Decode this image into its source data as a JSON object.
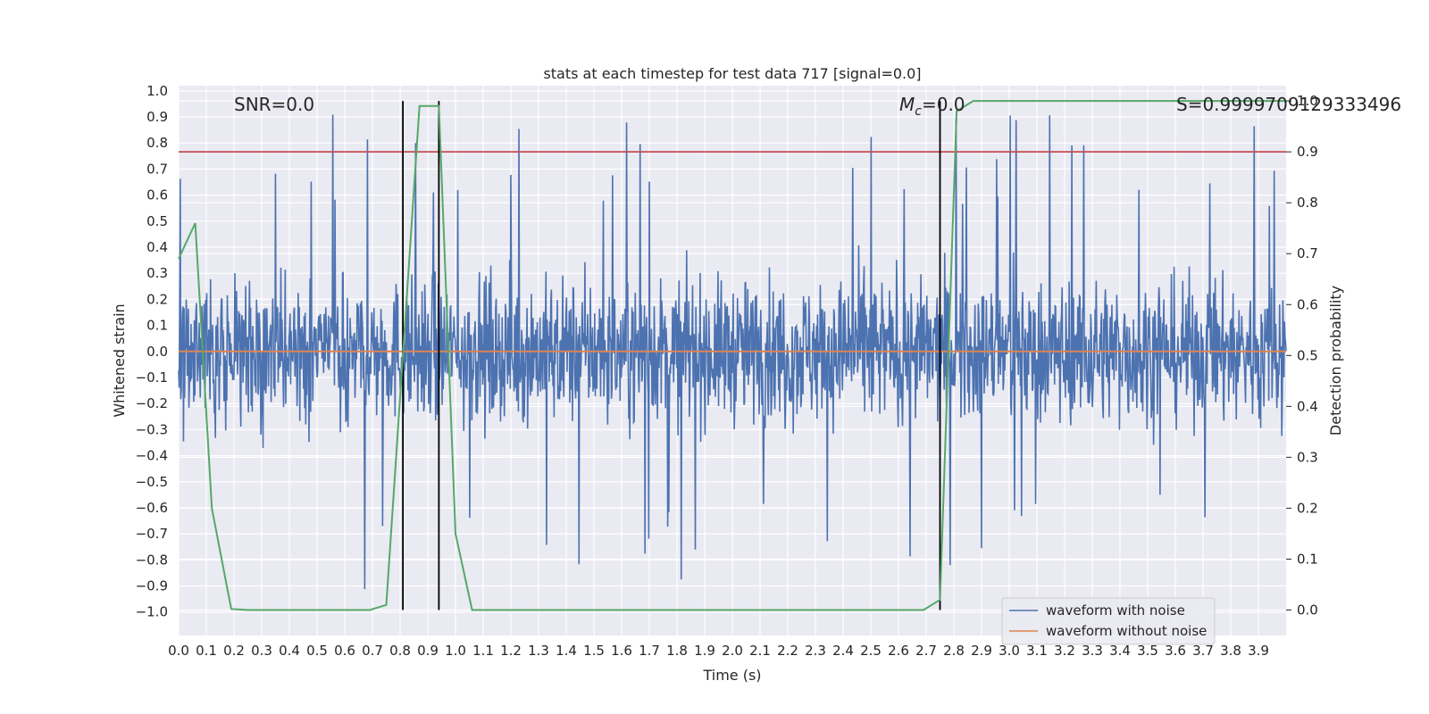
{
  "chart_data": {
    "type": "line",
    "title": "stats at each timestep for test data 717 [signal=0.0]",
    "xlabel": "Time (s)",
    "ylabel": "Whitened strain",
    "y2label": "Detection probability",
    "xlim": [
      0.0,
      4.0
    ],
    "ylim": [
      -1.09,
      1.02
    ],
    "y2lim": [
      -0.05,
      1.03
    ],
    "xticks": [
      0.0,
      0.1,
      0.2,
      0.3,
      0.4,
      0.5,
      0.6,
      0.7,
      0.8,
      0.9,
      1.0,
      1.1,
      1.2,
      1.3,
      1.4,
      1.5,
      1.6,
      1.7,
      1.8,
      1.9,
      2.0,
      2.1,
      2.2,
      2.3,
      2.4,
      2.5,
      2.6,
      2.7,
      2.8,
      2.9,
      3.0,
      3.1,
      3.2,
      3.3,
      3.4,
      3.5,
      3.6,
      3.7,
      3.8,
      3.9
    ],
    "yticks": [
      -1.0,
      -0.9,
      -0.8,
      -0.7,
      -0.6,
      -0.5,
      -0.4,
      -0.3,
      -0.2,
      -0.1,
      0.0,
      0.1,
      0.2,
      0.3,
      0.4,
      0.5,
      0.6,
      0.7,
      0.8,
      0.9,
      1.0
    ],
    "y2ticks": [
      0.0,
      0.1,
      0.2,
      0.3,
      0.4,
      0.5,
      0.6,
      0.7,
      0.8,
      0.9,
      1.0
    ],
    "annotations": {
      "snr": "SNR=0.0",
      "mc_sym": "M",
      "mc_sub": "c",
      "mc_val": "=0.0",
      "s": "S=0.9999709129333496"
    },
    "series": [
      {
        "name": "waveform with noise",
        "color": "#4c72b0",
        "style": "noise",
        "amplitude_typical": 0.45,
        "amplitude_peak": 0.92
      },
      {
        "name": "waveform without noise",
        "color": "#dd8452",
        "values_constant": 0.0
      },
      {
        "name": "detection probability",
        "axis": "y2",
        "color": "#55a868",
        "x": [
          0.0,
          0.06,
          0.12,
          0.19,
          0.25,
          0.31,
          0.38,
          0.44,
          0.5,
          0.56,
          0.62,
          0.69,
          0.75,
          0.81,
          0.87,
          0.94,
          1.0,
          1.06,
          1.12,
          1.19,
          1.25,
          1.31,
          1.38,
          1.44,
          1.5,
          1.56,
          1.62,
          1.69,
          1.75,
          1.81,
          1.87,
          1.94,
          2.0,
          2.06,
          2.12,
          2.19,
          2.25,
          2.31,
          2.38,
          2.44,
          2.5,
          2.56,
          2.62,
          2.69,
          2.75,
          2.81,
          2.87,
          2.94,
          3.0,
          3.06,
          3.12,
          3.19,
          3.25,
          3.31,
          3.38,
          3.44,
          3.5,
          3.56,
          3.62,
          3.69,
          3.75,
          3.81,
          3.87,
          3.94,
          4.0
        ],
        "values": [
          0.69,
          0.76,
          0.2,
          0.002,
          0.0,
          0.0,
          0.0,
          0.0,
          0.0,
          0.0,
          0.0,
          0.0,
          0.01,
          0.5,
          0.99,
          0.99,
          0.15,
          0.0,
          0.0,
          0.0,
          0.0,
          0.0,
          0.0,
          0.0,
          0.0,
          0.0,
          0.0,
          0.0,
          0.0,
          0.0,
          0.0,
          0.0,
          0.0,
          0.0,
          0.0,
          0.0,
          0.0,
          0.0,
          0.0,
          0.0,
          0.0,
          0.0,
          0.0,
          0.0,
          0.02,
          0.98,
          1.0,
          1.0,
          1.0,
          1.0,
          1.0,
          1.0,
          1.0,
          1.0,
          1.0,
          1.0,
          1.0,
          1.0,
          1.0,
          1.0,
          1.0,
          1.0,
          1.0,
          1.0,
          1.0
        ]
      }
    ],
    "threshold": {
      "axis": "y2",
      "value": 0.9,
      "color": "#c44e52"
    },
    "vlines": [
      0.81,
      0.94,
      2.75
    ],
    "legend": {
      "position": "bottom-right",
      "entries": [
        "waveform with noise",
        "waveform without noise"
      ]
    },
    "grid": true
  }
}
